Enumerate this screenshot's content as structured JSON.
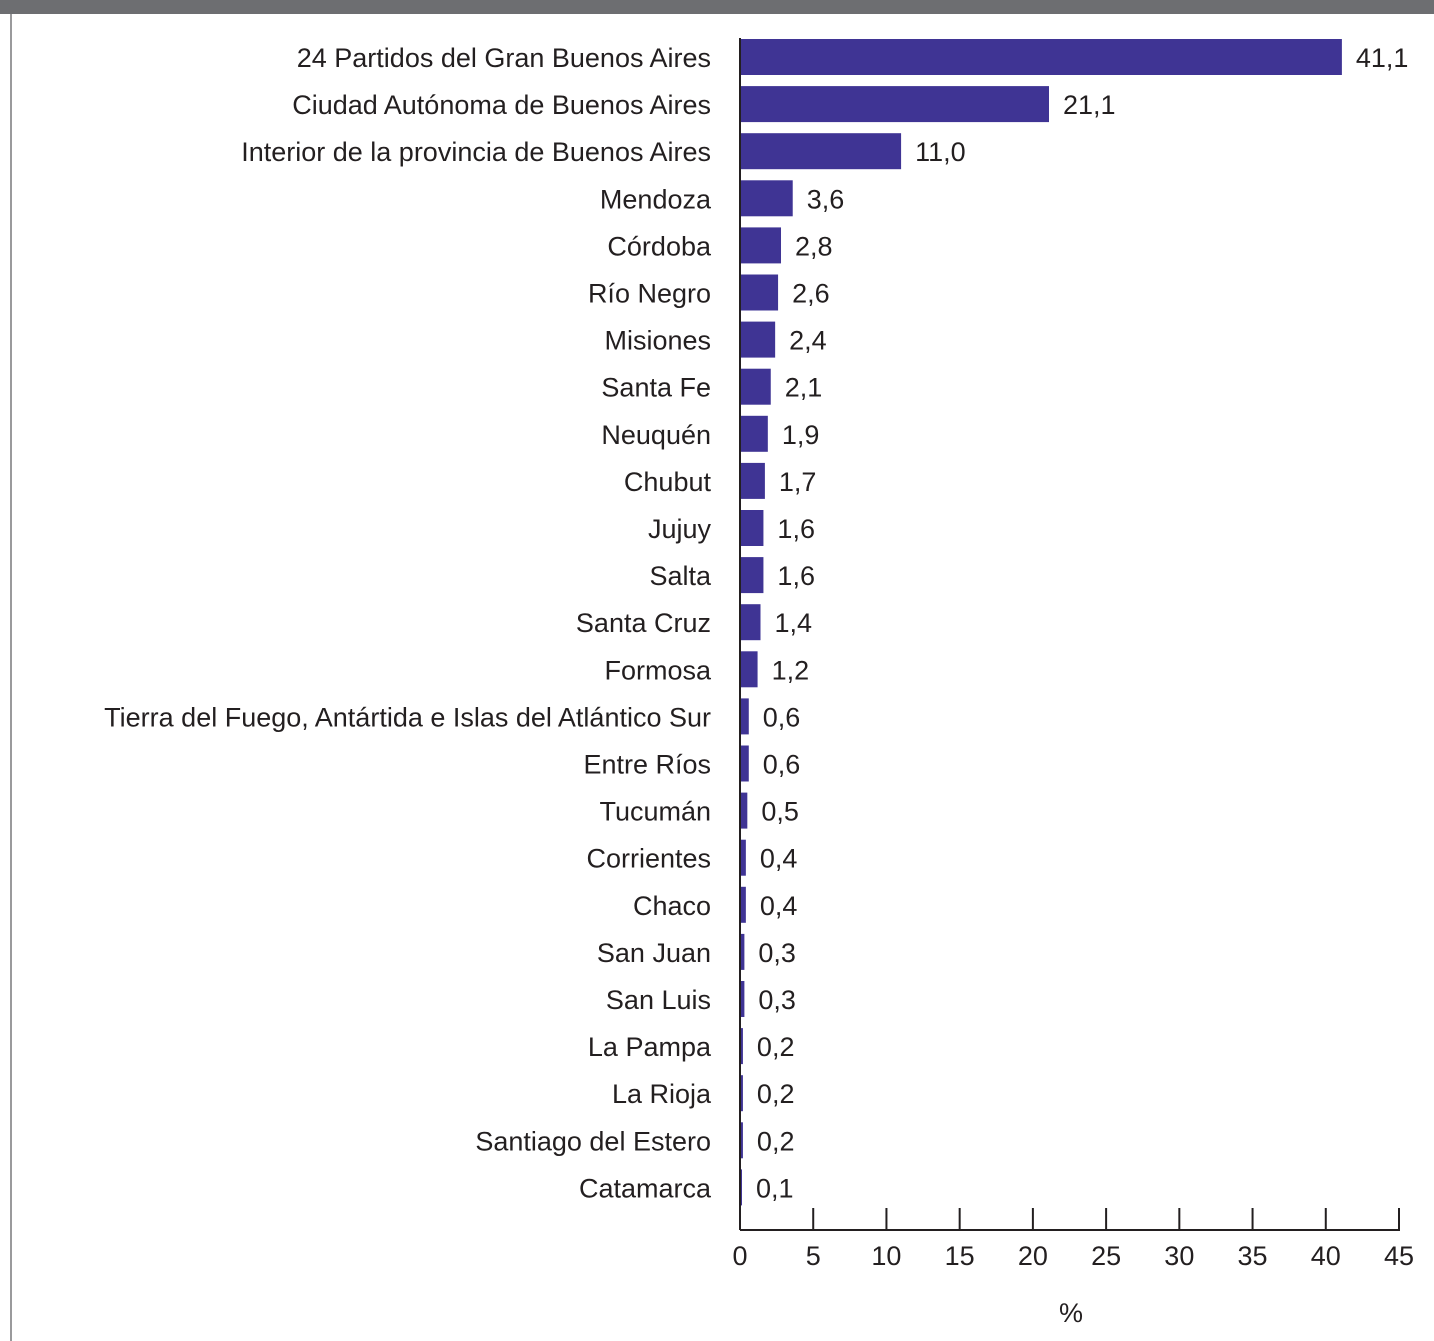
{
  "chart_data": {
    "type": "bar",
    "orientation": "horizontal",
    "categories": [
      "24 Partidos del Gran Buenos Aires",
      "Ciudad Autónoma de Buenos Aires",
      "Interior de la provincia de Buenos Aires",
      "Mendoza",
      "Córdoba",
      "Río Negro",
      "Misiones",
      "Santa Fe",
      "Neuquén",
      "Chubut",
      "Jujuy",
      "Salta",
      "Santa Cruz",
      "Formosa",
      "Tierra del Fuego, Antártida e Islas del Atlántico Sur",
      "Entre Ríos",
      "Tucumán",
      "Corrientes",
      "Chaco",
      "San Juan",
      "San Luis",
      "La Pampa",
      "La Rioja",
      "Santiago del Estero",
      "Catamarca"
    ],
    "values": [
      41.1,
      21.1,
      11.0,
      3.6,
      2.8,
      2.6,
      2.4,
      2.1,
      1.9,
      1.7,
      1.6,
      1.6,
      1.4,
      1.2,
      0.6,
      0.6,
      0.5,
      0.4,
      0.4,
      0.3,
      0.3,
      0.2,
      0.2,
      0.2,
      0.1
    ],
    "value_labels": [
      "41,1",
      "21,1",
      "11,0",
      "3,6",
      "2,8",
      "2,6",
      "2,4",
      "2,1",
      "1,9",
      "1,7",
      "1,6",
      "1,6",
      "1,4",
      "1,2",
      "0,6",
      "0,6",
      "0,5",
      "0,4",
      "0,4",
      "0,3",
      "0,3",
      "0,2",
      "0,2",
      "0,2",
      "0,1"
    ],
    "xlabel": "%",
    "xlim": [
      0,
      45
    ],
    "xticks": [
      0,
      5,
      10,
      15,
      20,
      25,
      30,
      35,
      40,
      45
    ],
    "bar_color": "#3f3494",
    "grid": false,
    "legend": "none"
  }
}
